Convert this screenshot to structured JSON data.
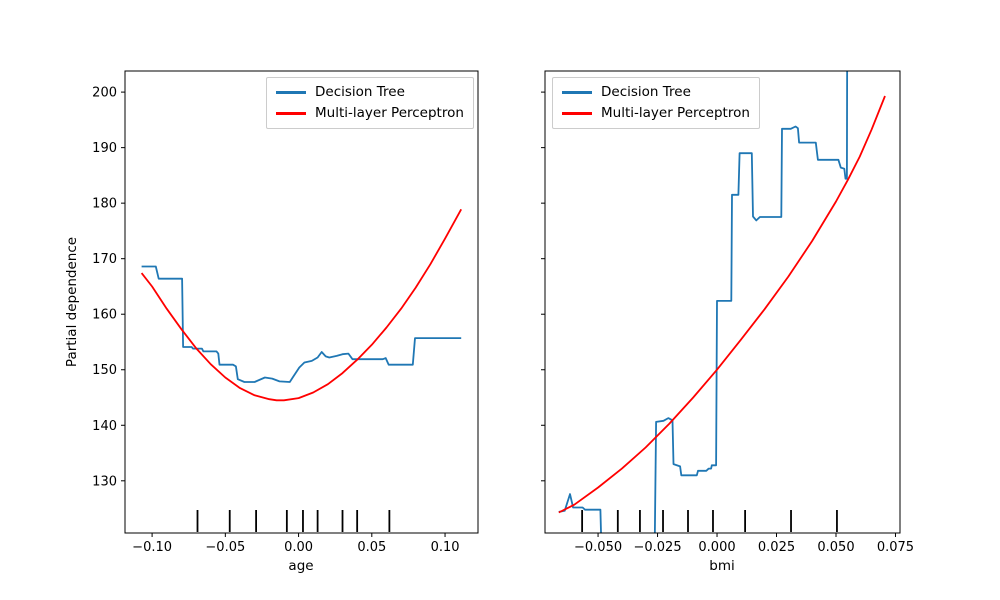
{
  "ylabel": "Partial dependence",
  "legend": {
    "items": [
      {
        "label": "Decision Tree",
        "color": "#1f77b4"
      },
      {
        "label": "Multi-layer Perceptron",
        "color": "#ff0000"
      }
    ]
  },
  "chart_data": [
    {
      "type": "line",
      "feature": "age",
      "xlabel": "age",
      "ylabel": "Partial dependence",
      "legend_position": "upper right",
      "grid": false,
      "xlim": [
        -0.1185,
        0.1225
      ],
      "ylim": [
        120.6,
        203.8
      ],
      "xticks": [
        -0.1,
        -0.05,
        0.0,
        0.05,
        0.1
      ],
      "xtick_labels": [
        "−0.10",
        "−0.05",
        "0.00",
        "0.05",
        "0.10"
      ],
      "yticks": [
        130,
        140,
        150,
        160,
        170,
        180,
        190,
        200
      ],
      "ytick_labels": [
        "130",
        "140",
        "150",
        "160",
        "170",
        "180",
        "190",
        "200"
      ],
      "show_ytick_labels": true,
      "rug_x": [
        -0.069,
        -0.047,
        -0.029,
        -0.008,
        0.003,
        0.013,
        0.03,
        0.04,
        0.062
      ],
      "series": [
        {
          "name": "Decision Tree",
          "color": "#1f77b4",
          "points": [
            [
              -0.1072,
              168.6
            ],
            [
              -0.0975,
              168.6
            ],
            [
              -0.0955,
              166.4
            ],
            [
              -0.0795,
              166.4
            ],
            [
              -0.0788,
              154.1
            ],
            [
              -0.073,
              154.1
            ],
            [
              -0.072,
              153.8
            ],
            [
              -0.066,
              153.8
            ],
            [
              -0.065,
              153.3
            ],
            [
              -0.056,
              153.3
            ],
            [
              -0.0548,
              152.9
            ],
            [
              -0.054,
              150.9
            ],
            [
              -0.0448,
              150.9
            ],
            [
              -0.0428,
              150.6
            ],
            [
              -0.0415,
              148.3
            ],
            [
              -0.037,
              147.8
            ],
            [
              -0.03,
              147.8
            ],
            [
              -0.023,
              148.6
            ],
            [
              -0.018,
              148.4
            ],
            [
              -0.013,
              147.9
            ],
            [
              -0.006,
              147.8
            ],
            [
              -0.004,
              148.6
            ],
            [
              0.0005,
              150.4
            ],
            [
              0.004,
              151.3
            ],
            [
              0.009,
              151.6
            ],
            [
              0.013,
              152.2
            ],
            [
              0.0158,
              153.2
            ],
            [
              0.0185,
              152.4
            ],
            [
              0.021,
              152.2
            ],
            [
              0.026,
              152.5
            ],
            [
              0.03,
              152.8
            ],
            [
              0.034,
              152.9
            ],
            [
              0.0368,
              151.9
            ],
            [
              0.0575,
              151.9
            ],
            [
              0.0595,
              152.1
            ],
            [
              0.0615,
              150.9
            ],
            [
              0.078,
              150.9
            ],
            [
              0.0795,
              155.7
            ],
            [
              0.111,
              155.7
            ]
          ]
        },
        {
          "name": "Multi-layer Perceptron",
          "color": "#ff0000",
          "points": [
            [
              -0.1072,
              167.4
            ],
            [
              -0.1,
              165.0
            ],
            [
              -0.09,
              161.0
            ],
            [
              -0.08,
              157.3
            ],
            [
              -0.07,
              153.9
            ],
            [
              -0.06,
              151.0
            ],
            [
              -0.05,
              148.6
            ],
            [
              -0.04,
              146.7
            ],
            [
              -0.03,
              145.4
            ],
            [
              -0.02,
              144.7
            ],
            [
              -0.015,
              144.5
            ],
            [
              -0.01,
              144.5
            ],
            [
              0.0,
              144.9
            ],
            [
              0.01,
              145.9
            ],
            [
              0.02,
              147.4
            ],
            [
              0.03,
              149.4
            ],
            [
              0.04,
              151.8
            ],
            [
              0.05,
              154.5
            ],
            [
              0.06,
              157.6
            ],
            [
              0.07,
              161.0
            ],
            [
              0.08,
              164.8
            ],
            [
              0.09,
              169.0
            ],
            [
              0.1,
              173.6
            ],
            [
              0.111,
              178.9
            ]
          ]
        }
      ]
    },
    {
      "type": "line",
      "feature": "bmi",
      "xlabel": "bmi",
      "ylabel": "Partial dependence",
      "legend_position": "upper left",
      "grid": false,
      "xlim": [
        -0.0723,
        0.0769
      ],
      "ylim": [
        120.6,
        203.8
      ],
      "xticks": [
        -0.05,
        -0.025,
        0.0,
        0.025,
        0.05,
        0.075
      ],
      "xtick_labels": [
        "−0.050",
        "−0.025",
        "0.000",
        "0.025",
        "0.050",
        "0.075"
      ],
      "yticks": [
        130,
        140,
        150,
        160,
        170,
        180,
        190,
        200
      ],
      "ytick_labels": [
        "130",
        "140",
        "150",
        "160",
        "170",
        "180",
        "190",
        "200"
      ],
      "show_ytick_labels": false,
      "rug_x": [
        -0.0567,
        -0.0417,
        -0.0324,
        -0.0227,
        -0.0122,
        -0.0017,
        0.0118,
        0.0311,
        0.0504
      ],
      "series": [
        {
          "name": "Decision Tree",
          "color": "#1f77b4",
          "points": [
            [
              -0.0665,
              124.4
            ],
            [
              -0.064,
              124.6
            ],
            [
              -0.0618,
              127.6
            ],
            [
              -0.0605,
              125.2
            ],
            [
              -0.0565,
              125.2
            ],
            [
              -0.0555,
              124.8
            ],
            [
              -0.049,
              124.8
            ],
            [
              -0.0486,
              118.0
            ],
            [
              -0.0262,
              118.0
            ],
            [
              -0.0256,
              140.6
            ],
            [
              -0.0225,
              140.8
            ],
            [
              -0.0205,
              141.3
            ],
            [
              -0.0187,
              140.9
            ],
            [
              -0.0183,
              133.0
            ],
            [
              -0.0155,
              132.6
            ],
            [
              -0.015,
              131.0
            ],
            [
              -0.0085,
              131.0
            ],
            [
              -0.008,
              131.8
            ],
            [
              -0.0045,
              131.8
            ],
            [
              -0.0035,
              132.2
            ],
            [
              -0.0025,
              132.2
            ],
            [
              -0.0022,
              132.8
            ],
            [
              -0.0004,
              132.8
            ],
            [
              0.0,
              162.4
            ],
            [
              0.006,
              162.4
            ],
            [
              0.0063,
              181.5
            ],
            [
              0.009,
              181.5
            ],
            [
              0.0095,
              189.0
            ],
            [
              0.0146,
              189.0
            ],
            [
              0.0151,
              177.6
            ],
            [
              0.0165,
              176.9
            ],
            [
              0.018,
              177.5
            ],
            [
              0.027,
              177.5
            ],
            [
              0.0273,
              193.4
            ],
            [
              0.031,
              193.4
            ],
            [
              0.033,
              193.8
            ],
            [
              0.034,
              193.5
            ],
            [
              0.0345,
              190.9
            ],
            [
              0.0415,
              190.9
            ],
            [
              0.0424,
              187.8
            ],
            [
              0.051,
              187.8
            ],
            [
              0.052,
              186.4
            ],
            [
              0.0535,
              186.2
            ],
            [
              0.054,
              184.4
            ],
            [
              0.0546,
              184.4
            ],
            [
              0.0548,
              226.0
            ]
          ]
        },
        {
          "name": "Multi-layer Perceptron",
          "color": "#ff0000",
          "points": [
            [
              -0.0665,
              124.3
            ],
            [
              -0.06,
              125.7
            ],
            [
              -0.05,
              128.8
            ],
            [
              -0.04,
              132.2
            ],
            [
              -0.03,
              136.0
            ],
            [
              -0.02,
              140.3
            ],
            [
              -0.01,
              145.0
            ],
            [
              0.0,
              150.0
            ],
            [
              0.01,
              155.4
            ],
            [
              0.02,
              160.9
            ],
            [
              0.03,
              166.8
            ],
            [
              0.04,
              173.2
            ],
            [
              0.05,
              180.3
            ],
            [
              0.055,
              184.2
            ],
            [
              0.06,
              188.4
            ],
            [
              0.065,
              193.3
            ],
            [
              0.0706,
              199.3
            ]
          ]
        }
      ]
    }
  ]
}
